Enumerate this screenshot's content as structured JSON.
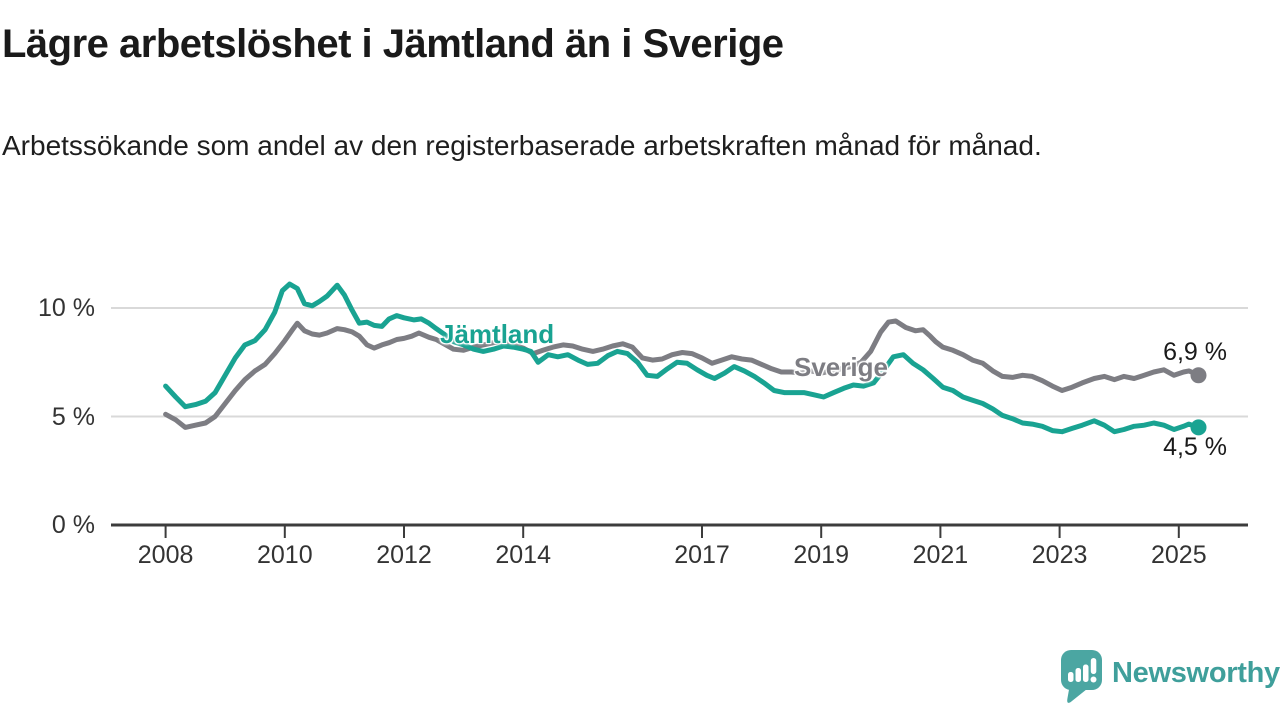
{
  "header": {
    "title": "Lägre arbetslöshet i Jämtland än i Sverige",
    "subtitle": "Arbetssökande som andel av den registerbaserade arbetskraften månad för månad."
  },
  "footer": {
    "brand": "Newsworthy"
  },
  "chart_data": {
    "type": "line",
    "title": "Lägre arbetslöshet i Jämtland än i Sverige",
    "xlabel": "",
    "ylabel": "",
    "unit": "%",
    "ylim": [
      0,
      11.5
    ],
    "xlim": [
      2007.1,
      2026.2
    ],
    "grid": "horizontal",
    "legend_position": "inline-labels",
    "yticks": [
      {
        "value": 0,
        "label": "0 %"
      },
      {
        "value": 5,
        "label": "5 %"
      },
      {
        "value": 10,
        "label": "10 %"
      }
    ],
    "gridlines": [
      5,
      10
    ],
    "xticks": [
      2008,
      2010,
      2012,
      2014,
      2017,
      2019,
      2021,
      2023,
      2025
    ],
    "colors": {
      "grid": "#d9d9d9",
      "axis": "#3c3c3c"
    },
    "series": [
      {
        "id": "sverige",
        "name": "Sverige",
        "color": "#7d7d83",
        "end_label": "6,9 %",
        "end_value": 6.9,
        "points": [
          [
            2008.0,
            5.1
          ],
          [
            2008.17,
            4.85
          ],
          [
            2008.33,
            4.5
          ],
          [
            2008.5,
            4.6
          ],
          [
            2008.67,
            4.7
          ],
          [
            2008.83,
            5.0
          ],
          [
            2009.0,
            5.6
          ],
          [
            2009.17,
            6.2
          ],
          [
            2009.33,
            6.7
          ],
          [
            2009.5,
            7.1
          ],
          [
            2009.67,
            7.4
          ],
          [
            2009.83,
            7.9
          ],
          [
            2010.0,
            8.5
          ],
          [
            2010.13,
            9.0
          ],
          [
            2010.21,
            9.3
          ],
          [
            2010.33,
            8.95
          ],
          [
            2010.46,
            8.8
          ],
          [
            2010.58,
            8.75
          ],
          [
            2010.71,
            8.85
          ],
          [
            2010.88,
            9.05
          ],
          [
            2011.0,
            9.0
          ],
          [
            2011.13,
            8.9
          ],
          [
            2011.25,
            8.7
          ],
          [
            2011.38,
            8.3
          ],
          [
            2011.5,
            8.15
          ],
          [
            2011.63,
            8.3
          ],
          [
            2011.75,
            8.4
          ],
          [
            2011.88,
            8.55
          ],
          [
            2012.0,
            8.6
          ],
          [
            2012.13,
            8.7
          ],
          [
            2012.25,
            8.85
          ],
          [
            2012.42,
            8.65
          ],
          [
            2012.54,
            8.55
          ],
          [
            2012.67,
            8.35
          ],
          [
            2012.83,
            8.1
          ],
          [
            2013.0,
            8.05
          ],
          [
            2013.17,
            8.2
          ],
          [
            2013.33,
            8.3
          ],
          [
            2013.5,
            8.4
          ],
          [
            2013.67,
            8.45
          ],
          [
            2013.83,
            8.3
          ],
          [
            2014.0,
            8.15
          ],
          [
            2014.17,
            7.9
          ],
          [
            2014.33,
            8.05
          ],
          [
            2014.5,
            8.2
          ],
          [
            2014.67,
            8.3
          ],
          [
            2014.83,
            8.25
          ],
          [
            2015.0,
            8.1
          ],
          [
            2015.17,
            8.0
          ],
          [
            2015.33,
            8.1
          ],
          [
            2015.5,
            8.25
          ],
          [
            2015.67,
            8.35
          ],
          [
            2015.83,
            8.2
          ],
          [
            2016.0,
            7.7
          ],
          [
            2016.17,
            7.6
          ],
          [
            2016.33,
            7.65
          ],
          [
            2016.5,
            7.85
          ],
          [
            2016.67,
            7.95
          ],
          [
            2016.83,
            7.9
          ],
          [
            2017.0,
            7.7
          ],
          [
            2017.17,
            7.45
          ],
          [
            2017.33,
            7.6
          ],
          [
            2017.5,
            7.75
          ],
          [
            2017.67,
            7.65
          ],
          [
            2017.83,
            7.6
          ],
          [
            2018.0,
            7.4
          ],
          [
            2018.17,
            7.2
          ],
          [
            2018.33,
            7.05
          ],
          [
            2018.5,
            7.05
          ],
          [
            2018.67,
            7.0
          ],
          [
            2018.83,
            7.1
          ],
          [
            2019.0,
            7.0
          ],
          [
            2019.17,
            7.1
          ],
          [
            2019.33,
            7.2
          ],
          [
            2019.5,
            7.3
          ],
          [
            2019.67,
            7.5
          ],
          [
            2019.83,
            8.0
          ],
          [
            2020.0,
            8.9
          ],
          [
            2020.13,
            9.35
          ],
          [
            2020.25,
            9.4
          ],
          [
            2020.42,
            9.1
          ],
          [
            2020.58,
            8.95
          ],
          [
            2020.71,
            9.0
          ],
          [
            2020.83,
            8.7
          ],
          [
            2020.92,
            8.45
          ],
          [
            2021.04,
            8.2
          ],
          [
            2021.21,
            8.05
          ],
          [
            2021.38,
            7.85
          ],
          [
            2021.54,
            7.6
          ],
          [
            2021.71,
            7.45
          ],
          [
            2021.88,
            7.1
          ],
          [
            2022.04,
            6.85
          ],
          [
            2022.21,
            6.8
          ],
          [
            2022.38,
            6.9
          ],
          [
            2022.54,
            6.85
          ],
          [
            2022.71,
            6.65
          ],
          [
            2022.88,
            6.4
          ],
          [
            2023.04,
            6.2
          ],
          [
            2023.21,
            6.35
          ],
          [
            2023.38,
            6.55
          ],
          [
            2023.58,
            6.75
          ],
          [
            2023.75,
            6.85
          ],
          [
            2023.92,
            6.7
          ],
          [
            2024.08,
            6.85
          ],
          [
            2024.25,
            6.75
          ],
          [
            2024.42,
            6.9
          ],
          [
            2024.58,
            7.05
          ],
          [
            2024.75,
            7.15
          ],
          [
            2024.92,
            6.9
          ],
          [
            2025.08,
            7.05
          ],
          [
            2025.17,
            7.1
          ],
          [
            2025.33,
            6.9
          ]
        ]
      },
      {
        "id": "jamtland",
        "name": "Jämtland",
        "color": "#19a392",
        "end_label": "4,5 %",
        "end_value": 4.5,
        "points": [
          [
            2008.0,
            6.4
          ],
          [
            2008.17,
            5.9
          ],
          [
            2008.33,
            5.45
          ],
          [
            2008.5,
            5.55
          ],
          [
            2008.67,
            5.7
          ],
          [
            2008.83,
            6.1
          ],
          [
            2009.0,
            6.9
          ],
          [
            2009.17,
            7.7
          ],
          [
            2009.33,
            8.3
          ],
          [
            2009.5,
            8.5
          ],
          [
            2009.67,
            9.0
          ],
          [
            2009.83,
            9.8
          ],
          [
            2009.96,
            10.8
          ],
          [
            2010.08,
            11.1
          ],
          [
            2010.21,
            10.9
          ],
          [
            2010.33,
            10.2
          ],
          [
            2010.46,
            10.1
          ],
          [
            2010.58,
            10.3
          ],
          [
            2010.71,
            10.55
          ],
          [
            2010.88,
            11.05
          ],
          [
            2011.0,
            10.6
          ],
          [
            2011.13,
            9.9
          ],
          [
            2011.25,
            9.3
          ],
          [
            2011.38,
            9.35
          ],
          [
            2011.5,
            9.2
          ],
          [
            2011.63,
            9.15
          ],
          [
            2011.75,
            9.5
          ],
          [
            2011.88,
            9.65
          ],
          [
            2012.0,
            9.55
          ],
          [
            2012.17,
            9.45
          ],
          [
            2012.29,
            9.5
          ],
          [
            2012.42,
            9.3
          ],
          [
            2012.54,
            9.05
          ],
          [
            2012.67,
            8.8
          ],
          [
            2012.83,
            8.45
          ],
          [
            2013.0,
            8.3
          ],
          [
            2013.17,
            8.1
          ],
          [
            2013.33,
            8.0
          ],
          [
            2013.5,
            8.1
          ],
          [
            2013.67,
            8.25
          ],
          [
            2013.83,
            8.2
          ],
          [
            2014.0,
            8.1
          ],
          [
            2014.13,
            8.0
          ],
          [
            2014.25,
            7.5
          ],
          [
            2014.42,
            7.85
          ],
          [
            2014.58,
            7.75
          ],
          [
            2014.75,
            7.85
          ],
          [
            2014.92,
            7.6
          ],
          [
            2015.08,
            7.4
          ],
          [
            2015.25,
            7.45
          ],
          [
            2015.42,
            7.8
          ],
          [
            2015.58,
            8.0
          ],
          [
            2015.75,
            7.9
          ],
          [
            2015.92,
            7.5
          ],
          [
            2016.08,
            6.9
          ],
          [
            2016.25,
            6.85
          ],
          [
            2016.42,
            7.2
          ],
          [
            2016.58,
            7.5
          ],
          [
            2016.75,
            7.45
          ],
          [
            2016.92,
            7.15
          ],
          [
            2017.08,
            6.9
          ],
          [
            2017.21,
            6.75
          ],
          [
            2017.38,
            7.0
          ],
          [
            2017.54,
            7.3
          ],
          [
            2017.71,
            7.1
          ],
          [
            2017.88,
            6.85
          ],
          [
            2018.04,
            6.55
          ],
          [
            2018.21,
            6.2
          ],
          [
            2018.38,
            6.1
          ],
          [
            2018.54,
            6.1
          ],
          [
            2018.71,
            6.1
          ],
          [
            2018.88,
            6.0
          ],
          [
            2019.04,
            5.9
          ],
          [
            2019.21,
            6.1
          ],
          [
            2019.38,
            6.3
          ],
          [
            2019.54,
            6.45
          ],
          [
            2019.71,
            6.4
          ],
          [
            2019.88,
            6.55
          ],
          [
            2020.04,
            7.1
          ],
          [
            2020.21,
            7.75
          ],
          [
            2020.38,
            7.85
          ],
          [
            2020.54,
            7.45
          ],
          [
            2020.71,
            7.15
          ],
          [
            2020.88,
            6.75
          ],
          [
            2021.04,
            6.35
          ],
          [
            2021.21,
            6.2
          ],
          [
            2021.38,
            5.9
          ],
          [
            2021.54,
            5.75
          ],
          [
            2021.71,
            5.6
          ],
          [
            2021.88,
            5.35
          ],
          [
            2022.04,
            5.05
          ],
          [
            2022.21,
            4.9
          ],
          [
            2022.38,
            4.7
          ],
          [
            2022.54,
            4.65
          ],
          [
            2022.71,
            4.55
          ],
          [
            2022.88,
            4.35
          ],
          [
            2023.04,
            4.3
          ],
          [
            2023.21,
            4.45
          ],
          [
            2023.38,
            4.6
          ],
          [
            2023.58,
            4.8
          ],
          [
            2023.75,
            4.6
          ],
          [
            2023.92,
            4.3
          ],
          [
            2024.08,
            4.4
          ],
          [
            2024.25,
            4.55
          ],
          [
            2024.42,
            4.6
          ],
          [
            2024.58,
            4.7
          ],
          [
            2024.75,
            4.6
          ],
          [
            2024.92,
            4.4
          ],
          [
            2025.08,
            4.55
          ],
          [
            2025.17,
            4.65
          ],
          [
            2025.33,
            4.5
          ]
        ]
      }
    ]
  }
}
